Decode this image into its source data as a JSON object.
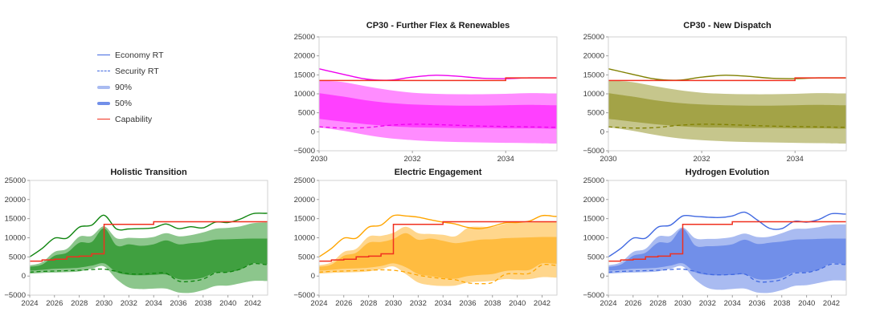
{
  "legend": {
    "items": [
      {
        "label": "Economy RT",
        "style": "line",
        "color": "#4169e1"
      },
      {
        "label": "Security RT",
        "style": "dashed",
        "color": "#4169e1"
      },
      {
        "label": "90%",
        "style": "band",
        "color": "#a9bbf1"
      },
      {
        "label": "50%",
        "style": "band",
        "color": "#718fe9"
      },
      {
        "label": "Capability",
        "style": "line",
        "color": "#f0301f"
      }
    ]
  },
  "chart_data": [
    {
      "type": "area",
      "title": "CP30 - Further Flex & Renewables",
      "colors": {
        "line": "#ee00ee",
        "band90": "#ff8cff",
        "band50": "#ff40ff",
        "capability": "#f0301f"
      },
      "xlim": [
        2030,
        2035.1
      ],
      "ylim": [
        -5000,
        25000
      ],
      "xticks": [
        2030,
        2032,
        2034
      ],
      "yticks": [
        -5000,
        0,
        5000,
        10000,
        15000,
        20000,
        25000
      ],
      "x": [
        2030,
        2030.5,
        2031,
        2031.5,
        2032,
        2032.5,
        2033,
        2033.5,
        2034,
        2034.5,
        2035
      ],
      "series": {
        "economy_rt": [
          16600,
          15200,
          13900,
          13600,
          14400,
          14900,
          14600,
          14100,
          14000,
          14200,
          14200
        ],
        "security_rt": [
          1300,
          1000,
          1100,
          1700,
          2000,
          1900,
          1700,
          1500,
          1400,
          1300,
          1200
        ],
        "p90_high": [
          13500,
          13100,
          12000,
          11000,
          10300,
          10000,
          9900,
          9900,
          10000,
          10200,
          10100
        ],
        "p90_low": [
          1200,
          300,
          -800,
          -1700,
          -2200,
          -2500,
          -2700,
          -2800,
          -2900,
          -3000,
          -3100
        ],
        "p50_high": [
          10200,
          9300,
          8300,
          7600,
          7200,
          7000,
          6900,
          6900,
          7000,
          7100,
          7000
        ],
        "p50_low": [
          3400,
          2700,
          2000,
          1500,
          1200,
          1100,
          1000,
          1000,
          900,
          900,
          800
        ],
        "capability": [
          13500,
          13500,
          13500,
          13500,
          13500,
          13500,
          13500,
          13500,
          14200,
          14200,
          14200
        ]
      }
    },
    {
      "type": "area",
      "title": "CP30 - New Dispatch",
      "colors": {
        "line": "#808000",
        "band90": "#c6c68c",
        "band50": "#a3a347",
        "capability": "#f0301f"
      },
      "xlim": [
        2030,
        2035.1
      ],
      "ylim": [
        -5000,
        25000
      ],
      "xticks": [
        2030,
        2032,
        2034
      ],
      "yticks": [
        -5000,
        0,
        5000,
        10000,
        15000,
        20000,
        25000
      ],
      "x": [
        2030,
        2030.5,
        2031,
        2031.5,
        2032,
        2032.5,
        2033,
        2033.5,
        2034,
        2034.5,
        2035
      ],
      "series": {
        "economy_rt": [
          16600,
          15200,
          13900,
          13600,
          14400,
          14900,
          14600,
          14100,
          14000,
          14200,
          14200
        ],
        "security_rt": [
          1300,
          1000,
          1100,
          1700,
          2000,
          1900,
          1700,
          1500,
          1400,
          1300,
          1200
        ],
        "p90_high": [
          13500,
          13100,
          12000,
          11000,
          10300,
          10000,
          9900,
          9900,
          10000,
          10200,
          10100
        ],
        "p90_low": [
          1200,
          300,
          -800,
          -1700,
          -2200,
          -2500,
          -2700,
          -2800,
          -2900,
          -3000,
          -3100
        ],
        "p50_high": [
          10200,
          9300,
          8300,
          7600,
          7200,
          7000,
          6900,
          6900,
          7000,
          7100,
          7000
        ],
        "p50_low": [
          3400,
          2700,
          2000,
          1500,
          1200,
          1100,
          1000,
          1000,
          900,
          900,
          800
        ],
        "capability": [
          13500,
          13500,
          13500,
          13500,
          13500,
          13500,
          13500,
          13500,
          14200,
          14200,
          14200
        ]
      }
    },
    {
      "type": "area",
      "title": "Holistic Transition",
      "colors": {
        "line": "#0f850f",
        "band90": "#8cc68c",
        "band50": "#40a040",
        "capability": "#f0301f"
      },
      "xlim": [
        2024,
        2043.2
      ],
      "ylim": [
        -5000,
        25000
      ],
      "xticks": [
        2024,
        2026,
        2028,
        2030,
        2032,
        2034,
        2036,
        2038,
        2040,
        2042
      ],
      "yticks": [
        -5000,
        0,
        5000,
        10000,
        15000,
        20000,
        25000
      ],
      "x": [
        2024,
        2025,
        2026,
        2027,
        2028,
        2029,
        2030,
        2031,
        2032,
        2033,
        2034,
        2035,
        2036,
        2037,
        2038,
        2039,
        2040,
        2041,
        2042,
        2043
      ],
      "series": {
        "economy_rt": [
          5000,
          7200,
          9900,
          9900,
          12800,
          13300,
          15900,
          12300,
          12300,
          12400,
          12600,
          13600,
          12400,
          12900,
          12600,
          14100,
          14000,
          14900,
          16300,
          16400
        ],
        "security_rt": [
          1000,
          1200,
          1300,
          1400,
          1500,
          1700,
          1800,
          1200,
          600,
          500,
          700,
          700,
          -1300,
          -1400,
          -800,
          800,
          1000,
          1800,
          3200,
          3000
        ],
        "p90_high": [
          2800,
          3600,
          6300,
          7100,
          10300,
          10500,
          13000,
          9900,
          10000,
          9900,
          10200,
          11200,
          10400,
          10700,
          11400,
          12400,
          12600,
          13000,
          13800,
          14000
        ],
        "p90_low": [
          600,
          800,
          900,
          1000,
          1200,
          1900,
          2500,
          -800,
          -3000,
          -3400,
          -3300,
          -3300,
          -4300,
          -4400,
          -3700,
          -2600,
          -2500,
          -1900,
          -1300,
          -1300
        ],
        "p50_high": [
          2400,
          3000,
          5300,
          6100,
          8700,
          8900,
          12500,
          8000,
          8300,
          7900,
          8300,
          9300,
          8300,
          8600,
          8900,
          9500,
          9600,
          9700,
          9800,
          9800
        ],
        "p50_low": [
          1400,
          1600,
          1900,
          2000,
          2200,
          2700,
          3300,
          1000,
          300,
          200,
          300,
          400,
          -800,
          -900,
          -400,
          900,
          1000,
          1700,
          3300,
          3100
        ],
        "capability": [
          3900,
          4200,
          4400,
          5000,
          5200,
          5800,
          13500,
          13500,
          13500,
          13500,
          14200,
          14200,
          14200,
          14200,
          14200,
          14200,
          14200,
          14200,
          14200,
          14200
        ]
      }
    },
    {
      "type": "area",
      "title": "Electric Engagement",
      "colors": {
        "line": "#ffa500",
        "band90": "#ffd68c",
        "band50": "#ffbc40",
        "capability": "#f0301f"
      },
      "xlim": [
        2024,
        2043.2
      ],
      "ylim": [
        -5000,
        25000
      ],
      "xticks": [
        2024,
        2026,
        2028,
        2030,
        2032,
        2034,
        2036,
        2038,
        2040,
        2042
      ],
      "yticks": [
        -5000,
        0,
        5000,
        10000,
        15000,
        20000,
        25000
      ],
      "x": [
        2024,
        2025,
        2026,
        2027,
        2028,
        2029,
        2030,
        2031,
        2032,
        2033,
        2034,
        2035,
        2036,
        2037,
        2038,
        2039,
        2040,
        2041,
        2042,
        2043
      ],
      "series": {
        "economy_rt": [
          5000,
          7200,
          9900,
          9900,
          12800,
          13300,
          15800,
          15700,
          15400,
          14700,
          14100,
          13600,
          12700,
          12400,
          13000,
          13900,
          14000,
          14400,
          15800,
          15600
        ],
        "security_rt": [
          1000,
          1200,
          1300,
          1400,
          1500,
          1600,
          1500,
          1000,
          200,
          -300,
          -700,
          -1000,
          -1800,
          -2000,
          -1700,
          400,
          600,
          700,
          2900,
          2800
        ],
        "p90_high": [
          2800,
          3600,
          6300,
          7100,
          10300,
          10500,
          11300,
          12900,
          11200,
          11000,
          10800,
          10400,
          12600,
          12900,
          12800,
          13600,
          13900,
          14000,
          14100,
          14100
        ],
        "p90_low": [
          600,
          800,
          900,
          1000,
          1200,
          1800,
          2500,
          500,
          -1700,
          -2400,
          -2600,
          -2500,
          -1700,
          -1500,
          -1300,
          -800,
          -900,
          -800,
          -300,
          -400
        ],
        "p50_high": [
          2400,
          3000,
          5300,
          6100,
          8700,
          8900,
          9700,
          11200,
          9500,
          9800,
          9200,
          8600,
          9000,
          9500,
          9600,
          9900,
          10000,
          10100,
          10200,
          10200
        ],
        "p50_low": [
          1400,
          1600,
          1900,
          2000,
          2200,
          2600,
          3300,
          2300,
          500,
          0,
          -500,
          -700,
          0,
          300,
          500,
          1300,
          1500,
          1600,
          3300,
          3200
        ],
        "capability": [
          3900,
          4200,
          4400,
          5000,
          5200,
          5800,
          13500,
          13500,
          13500,
          13500,
          14200,
          14200,
          14200,
          14200,
          14200,
          14200,
          14200,
          14200,
          14200,
          14200
        ]
      }
    },
    {
      "type": "area",
      "title": "Hydrogen Evolution",
      "colors": {
        "line": "#4169e1",
        "band90": "#a9bbf1",
        "band50": "#718fe9",
        "capability": "#f0301f"
      },
      "xlim": [
        2024,
        2043.2
      ],
      "ylim": [
        -5000,
        25000
      ],
      "xticks": [
        2024,
        2026,
        2028,
        2030,
        2032,
        2034,
        2036,
        2038,
        2040,
        2042
      ],
      "yticks": [
        -5000,
        0,
        5000,
        10000,
        15000,
        20000,
        25000
      ],
      "x": [
        2024,
        2025,
        2026,
        2027,
        2028,
        2029,
        2030,
        2031,
        2032,
        2033,
        2034,
        2035,
        2036,
        2037,
        2038,
        2039,
        2040,
        2041,
        2042,
        2043
      ],
      "series": {
        "economy_rt": [
          5000,
          7200,
          9900,
          9900,
          12800,
          13300,
          15700,
          15600,
          15400,
          15300,
          15700,
          16700,
          14700,
          12500,
          12400,
          14300,
          14100,
          14800,
          16300,
          16200
        ],
        "security_rt": [
          1000,
          1200,
          1300,
          1400,
          1500,
          1700,
          1800,
          1200,
          500,
          300,
          400,
          500,
          -1400,
          -1500,
          -900,
          700,
          900,
          1700,
          3100,
          3000
        ],
        "p90_high": [
          2800,
          3600,
          6300,
          7100,
          10300,
          10500,
          12700,
          9900,
          9700,
          9800,
          10200,
          11100,
          10200,
          10300,
          11200,
          12300,
          12400,
          12800,
          13400,
          13500
        ],
        "p90_low": [
          600,
          800,
          900,
          1000,
          1200,
          1900,
          2500,
          -900,
          -3100,
          -3600,
          -3400,
          -3300,
          -4300,
          -4400,
          -3700,
          -2600,
          -2400,
          -1800,
          -1200,
          -1200
        ],
        "p50_high": [
          2400,
          3000,
          5300,
          6100,
          8700,
          8900,
          12400,
          8000,
          7800,
          7900,
          8300,
          9500,
          8400,
          8700,
          9000,
          9500,
          9600,
          9700,
          9800,
          9800
        ],
        "p50_low": [
          1400,
          1600,
          1900,
          2000,
          2200,
          2700,
          3300,
          1000,
          300,
          200,
          300,
          400,
          -800,
          -900,
          -400,
          900,
          1000,
          1700,
          3300,
          3100
        ],
        "capability": [
          3900,
          4200,
          4400,
          5000,
          5200,
          5800,
          13500,
          13500,
          13500,
          13500,
          14200,
          14200,
          14200,
          14200,
          14200,
          14200,
          14200,
          14200,
          14200,
          14200
        ]
      }
    }
  ]
}
